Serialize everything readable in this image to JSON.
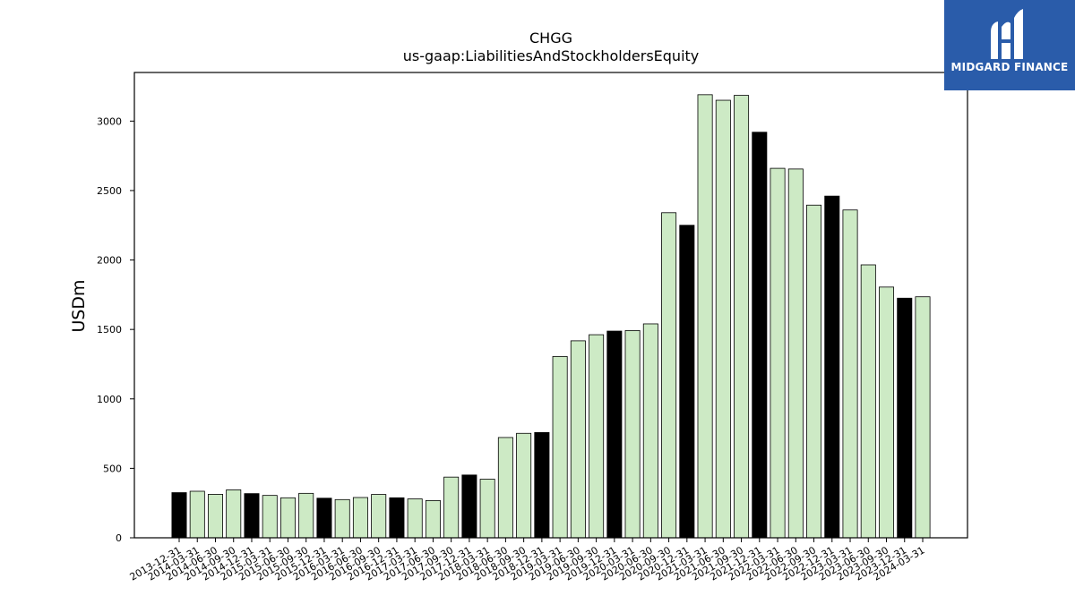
{
  "chart_data": {
    "type": "bar",
    "title": "CHGG",
    "subtitle": "us-gaap:LiabilitiesAndStockholdersEquity",
    "ylabel": "USDm",
    "xlabel": "",
    "ylim": [
      0,
      3350
    ],
    "yticks": [
      0,
      500,
      1000,
      1500,
      2000,
      2500,
      3000
    ],
    "colors": {
      "quarter": "#cdeac5",
      "year_end": "#000000",
      "edge": "#000000"
    },
    "categories": [
      "2013-12-31",
      "2014-03-31",
      "2014-06-30",
      "2014-09-30",
      "2014-12-31",
      "2015-03-31",
      "2015-06-30",
      "2015-09-30",
      "2015-12-31",
      "2016-03-31",
      "2016-06-30",
      "2016-09-30",
      "2016-12-31",
      "2017-03-31",
      "2017-06-30",
      "2017-09-30",
      "2017-12-31",
      "2018-03-31",
      "2018-06-30",
      "2018-09-30",
      "2018-12-31",
      "2019-03-31",
      "2019-06-30",
      "2019-09-30",
      "2019-12-31",
      "2020-03-31",
      "2020-06-30",
      "2020-09-30",
      "2020-12-31",
      "2021-03-31",
      "2021-06-30",
      "2021-09-30",
      "2021-12-31",
      "2022-03-31",
      "2022-06-30",
      "2022-09-30",
      "2022-12-31",
      "2023-03-31",
      "2023-06-30",
      "2023-09-30",
      "2023-12-31",
      "2024-03-31"
    ],
    "values": [
      325,
      335,
      313,
      345,
      318,
      305,
      288,
      320,
      285,
      275,
      290,
      312,
      288,
      280,
      268,
      437,
      452,
      422,
      722,
      752,
      758,
      1305,
      1418,
      1462,
      1488,
      1492,
      1540,
      2340,
      2250,
      3190,
      3150,
      3185,
      2920,
      2660,
      2655,
      2395,
      2460,
      2360,
      1965,
      1805,
      1725,
      1735
    ],
    "year_end_flags": [
      true,
      false,
      false,
      false,
      true,
      false,
      false,
      false,
      true,
      false,
      false,
      false,
      true,
      false,
      false,
      false,
      true,
      false,
      false,
      false,
      true,
      false,
      false,
      false,
      true,
      false,
      false,
      false,
      true,
      false,
      false,
      false,
      true,
      false,
      false,
      false,
      true,
      false,
      false,
      false,
      true,
      false
    ]
  },
  "logo": {
    "text": "MIDGARD FINANCE",
    "background": "#2a5caa",
    "icon": "midgard-logo-icon"
  }
}
